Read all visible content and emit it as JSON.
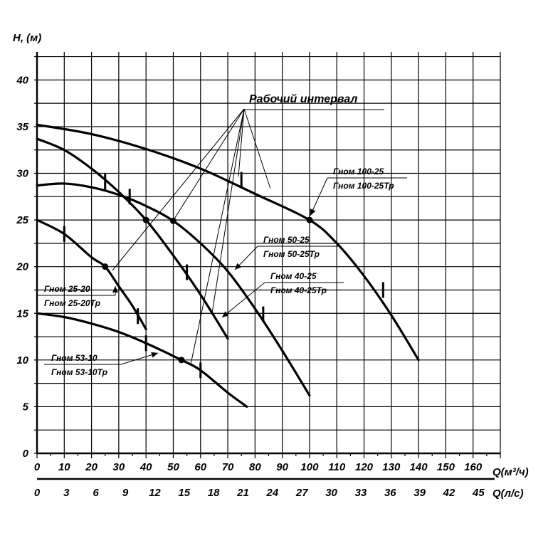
{
  "chart_data": {
    "type": "line",
    "ylabel": "H, (м)",
    "xlabel": "Q(м³/ч)",
    "xlabel2": "Q(л/с)",
    "xlim": [
      0,
      170
    ],
    "ylim": [
      0,
      43
    ],
    "grid": true,
    "y_ticks": [
      "0",
      "5",
      "10",
      "15",
      "20",
      "25",
      "30",
      "35",
      "40"
    ],
    "x_ticks": [
      "0",
      "10",
      "20",
      "30",
      "40",
      "50",
      "60",
      "70",
      "80",
      "90",
      "100",
      "110",
      "120",
      "130",
      "140",
      "150",
      "160"
    ],
    "x2_ticks": [
      "0",
      "3",
      "6",
      "9",
      "12",
      "15",
      "18",
      "21",
      "24",
      "27",
      "30",
      "33",
      "36",
      "39",
      "42",
      "45"
    ],
    "annotation": "Рабочий интервал",
    "series": [
      {
        "label_top": "Гном 100-25",
        "label_bottom": "Гном 100-25Тр",
        "x": [
          0,
          20,
          40,
          60,
          80,
          100,
          110,
          120,
          130,
          140
        ],
        "y": [
          35.2,
          34.2,
          32.6,
          30.5,
          27.8,
          25.0,
          22.5,
          19.0,
          14.8,
          10.0
        ],
        "work_ticks": [
          {
            "x": 75,
            "y": 29.3
          },
          {
            "x": 127,
            "y": 17.5
          }
        ],
        "nominal": {
          "x": 100,
          "y": 25.0
        }
      },
      {
        "label_top": "Гном 50-25",
        "label_bottom": "Гном 50-25Тр",
        "x": [
          0,
          10,
          20,
          30,
          40,
          50,
          60,
          70,
          80,
          90,
          100
        ],
        "y": [
          28.7,
          28.9,
          28.5,
          27.7,
          26.5,
          24.9,
          22.5,
          19.5,
          15.5,
          11.0,
          6.2
        ],
        "work_ticks": [
          {
            "x": 34,
            "y": 27.5
          },
          {
            "x": 83,
            "y": 14.9
          }
        ],
        "nominal": {
          "x": 50,
          "y": 24.9
        }
      },
      {
        "label_top": "Гном 40-25",
        "label_bottom": "Гном 40-25Тр",
        "x": [
          0,
          10,
          20,
          30,
          40,
          50,
          60,
          70
        ],
        "y": [
          33.7,
          32.5,
          30.5,
          28.0,
          25.0,
          21.2,
          17.0,
          12.3
        ],
        "work_ticks": [
          {
            "x": 25,
            "y": 29.1
          },
          {
            "x": 55,
            "y": 19.4
          }
        ],
        "nominal": {
          "x": 40,
          "y": 25.0
        }
      },
      {
        "label_top": "Гном 25-20",
        "label_bottom": "Гном 25-20Тр",
        "x": [
          0,
          10,
          20,
          25,
          30,
          35,
          40
        ],
        "y": [
          25.0,
          23.5,
          21.0,
          20.0,
          17.9,
          15.8,
          13.3
        ],
        "work_ticks": [
          {
            "x": 10,
            "y": 23.5
          },
          {
            "x": 37,
            "y": 14.7
          }
        ],
        "nominal": {
          "x": 25,
          "y": 20.0
        }
      },
      {
        "label_top": "Гном 53-10",
        "label_bottom": "Гном 53-10Тр",
        "x": [
          0,
          10,
          20,
          30,
          40,
          53,
          60,
          70,
          77
        ],
        "y": [
          15.0,
          14.6,
          13.9,
          13.0,
          11.8,
          10.0,
          8.9,
          6.5,
          5.0
        ],
        "work_ticks": [
          {
            "x": 40,
            "y": 11.8
          },
          {
            "x": 60,
            "y": 8.9
          }
        ],
        "nominal": {
          "x": 53,
          "y": 10.0
        }
      }
    ]
  }
}
